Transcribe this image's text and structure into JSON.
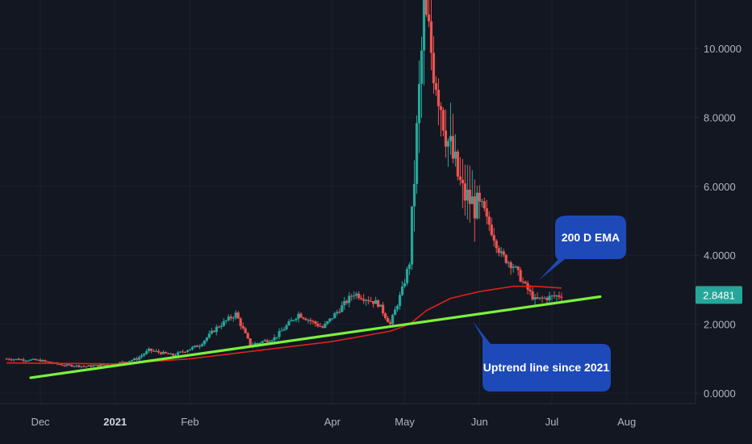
{
  "chart_data": {
    "type": "candlestick",
    "instrument": "",
    "colors": {
      "background": "#131722",
      "up": "#26a69a",
      "down": "#ef5350",
      "ema": "#e0221a",
      "trendline": "#7cf23c",
      "callout": "#1e49b8",
      "grid": "#1c2030",
      "axis_text": "#b2b5be"
    },
    "y_axis": {
      "position": "right",
      "range": [
        -0.3,
        11.4
      ],
      "ticks": [
        "0.0000",
        "2.0000",
        "4.0000",
        "6.0000",
        "8.0000",
        "10.0000"
      ],
      "tick_values": [
        0,
        2,
        4,
        6,
        8,
        10
      ]
    },
    "x_axis": {
      "ticks": [
        {
          "label": "Dec",
          "date": "2020-12-01"
        },
        {
          "label": "2021",
          "date": "2021-01-01",
          "bold": true
        },
        {
          "label": "Feb",
          "date": "2021-02-01"
        },
        {
          "label": "Apr",
          "date": "2021-04-01"
        },
        {
          "label": "May",
          "date": "2021-05-01"
        },
        {
          "label": "Jun",
          "date": "2021-06-01"
        },
        {
          "label": "Jul",
          "date": "2021-07-01"
        },
        {
          "label": "Aug",
          "date": "2021-08-01"
        }
      ]
    },
    "last_price": {
      "value": 2.85,
      "label": "2.8481"
    },
    "price_anchors": [
      [
        "2020-11-17",
        1.0
      ],
      [
        "2020-12-01",
        0.95
      ],
      [
        "2020-12-10",
        0.82
      ],
      [
        "2020-12-20",
        0.78
      ],
      [
        "2021-01-01",
        0.85
      ],
      [
        "2021-01-10",
        1.0
      ],
      [
        "2021-01-15",
        1.25
      ],
      [
        "2021-01-25",
        1.1
      ],
      [
        "2021-02-05",
        1.4
      ],
      [
        "2021-02-12",
        1.9
      ],
      [
        "2021-02-20",
        2.3
      ],
      [
        "2021-02-26",
        1.4
      ],
      [
        "2021-03-08",
        1.6
      ],
      [
        "2021-03-18",
        2.3
      ],
      [
        "2021-03-28",
        1.9
      ],
      [
        "2021-04-10",
        2.9
      ],
      [
        "2021-04-20",
        2.6
      ],
      [
        "2021-04-25",
        2.0
      ],
      [
        "2021-04-30",
        3.0
      ],
      [
        "2021-05-03",
        3.8
      ],
      [
        "2021-05-06",
        7.5
      ],
      [
        "2021-05-09",
        11.0
      ],
      [
        "2021-05-14",
        9.2
      ],
      [
        "2021-05-19",
        7.3
      ],
      [
        "2021-05-25",
        5.8
      ],
      [
        "2021-06-01",
        5.3
      ],
      [
        "2021-06-05",
        4.9
      ],
      [
        "2021-06-10",
        4.0
      ],
      [
        "2021-06-15",
        3.7
      ],
      [
        "2021-06-20",
        3.1
      ],
      [
        "2021-06-24",
        2.7
      ],
      [
        "2021-07-05",
        2.85
      ]
    ],
    "ema_200d": [
      [
        "2020-11-17",
        0.88
      ],
      [
        "2021-01-01",
        0.85
      ],
      [
        "2021-02-01",
        1.0
      ],
      [
        "2021-04-01",
        1.5
      ],
      [
        "2021-04-25",
        1.8
      ],
      [
        "2021-05-03",
        2.0
      ],
      [
        "2021-05-10",
        2.4
      ],
      [
        "2021-05-20",
        2.75
      ],
      [
        "2021-06-01",
        2.95
      ],
      [
        "2021-06-15",
        3.1
      ],
      [
        "2021-06-24",
        3.1
      ],
      [
        "2021-07-05",
        3.05
      ]
    ],
    "uptrend_line": [
      [
        "2020-11-27",
        0.45
      ],
      [
        "2021-07-21",
        2.8
      ]
    ],
    "annotations": [
      {
        "label": "200 D EMA"
      },
      {
        "label": "Uptrend line since 2021"
      }
    ]
  }
}
